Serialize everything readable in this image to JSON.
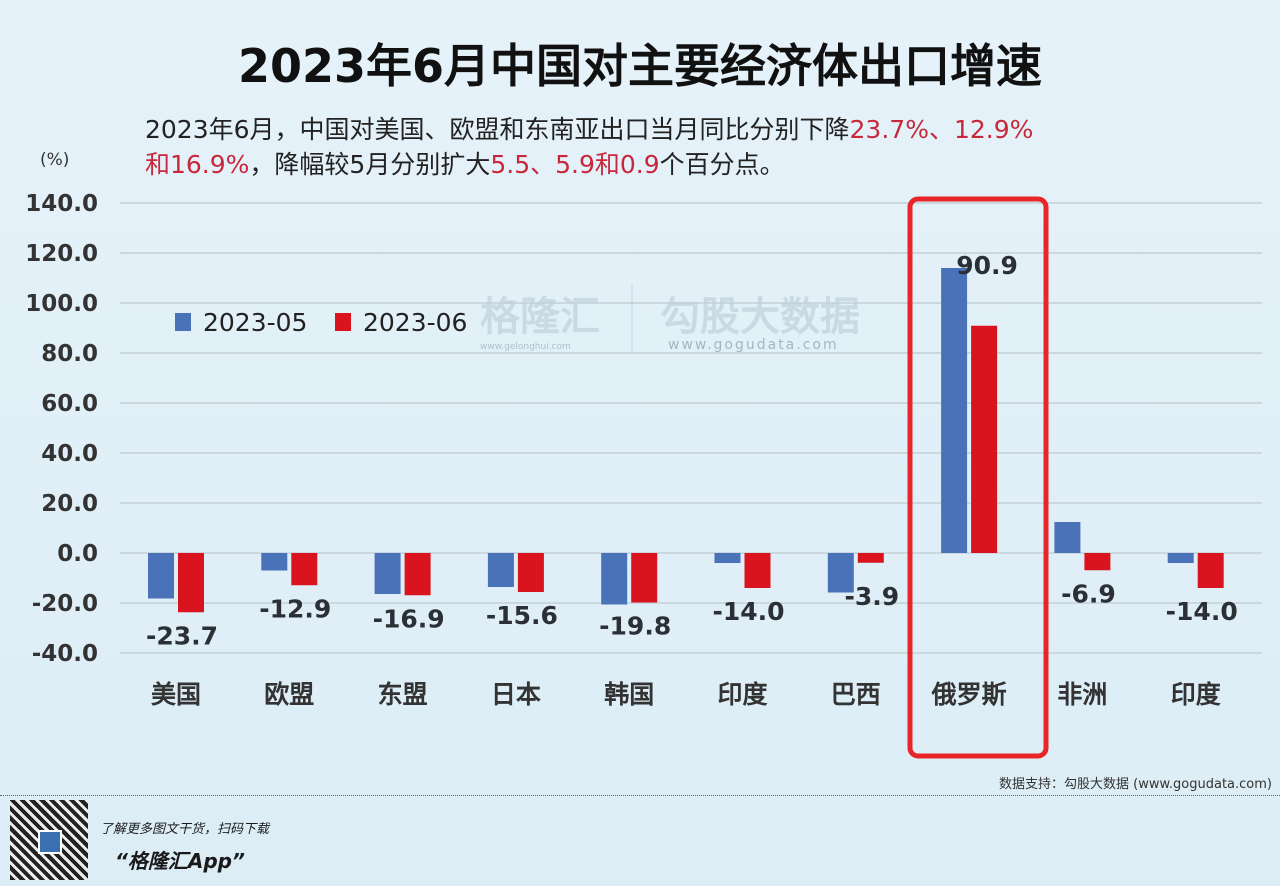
{
  "chart_data": {
    "type": "bar",
    "title": "2023年6月中国对主要经济体出口增速",
    "subtitle": {
      "p1": "2023年6月，中国对美国、欧盟和东南亚出口当月同比分别下降",
      "h1": "23.7%、12.9%",
      "p2": "和16.9%",
      "p3": "，降幅较5月分别扩大",
      "h2": "5.5、5.9和0.9",
      "p4": "个百分点。"
    },
    "ylabel": "(%)",
    "ylim": [
      -40,
      140
    ],
    "yticks": [
      "140.0",
      "120.0",
      "100.0",
      "80.0",
      "60.0",
      "40.0",
      "20.0",
      "0.0",
      "-20.0",
      "-40.0"
    ],
    "ytick_values": [
      140,
      120,
      100,
      80,
      60,
      40,
      20,
      0,
      -20,
      -40
    ],
    "grid": true,
    "legend_placement": "top-left",
    "categories": [
      "美国",
      "欧盟",
      "东盟",
      "日本",
      "韩国",
      "印度",
      "巴西",
      "俄罗斯",
      "非洲",
      "印度"
    ],
    "series": [
      {
        "name": "2023-05",
        "color": "#4a72b8",
        "values": [
          -18.2,
          -7.0,
          -16.4,
          -13.6,
          -20.6,
          -4.0,
          -15.8,
          114.0,
          12.4,
          -4.0
        ]
      },
      {
        "name": "2023-06",
        "color": "#d9141e",
        "values": [
          -23.7,
          -12.9,
          -16.9,
          -15.6,
          -19.8,
          -14.0,
          -3.9,
          90.9,
          -6.9,
          -14.0
        ],
        "labels": [
          "-23.7",
          "-12.9",
          "-16.9",
          "-15.6",
          "-19.8",
          "-14.0",
          "-3.9",
          "90.9",
          "-6.9",
          "-14.0"
        ]
      }
    ],
    "highlight_category": "俄罗斯",
    "highlight_color": "#e8262a"
  },
  "watermark": {
    "brand": "格隆汇",
    "brand_url": "www.gelonghui.com",
    "partner": "勾股大数据",
    "partner_url": "www.gogudata.com"
  },
  "footer": {
    "source": "数据支持：勾股大数据 (www.gogudata.com)",
    "promo": "了解更多图文干货，扫码下载",
    "app": "“格隆汇App”"
  }
}
